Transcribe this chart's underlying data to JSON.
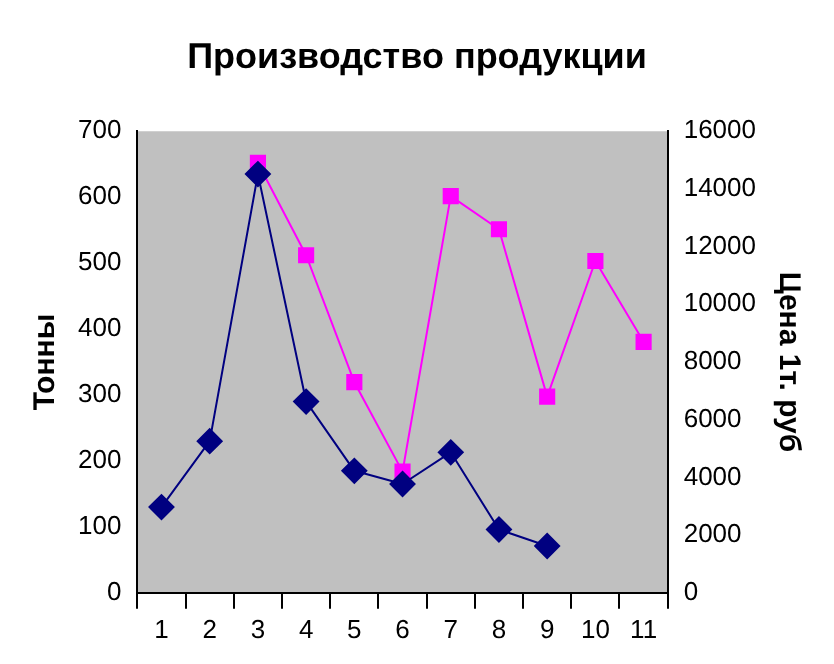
{
  "chart_data": {
    "type": "line",
    "title": "Производство продукции",
    "ylabel": "Тонны",
    "y2label": "Цена 1т. руб",
    "categories": [
      "1",
      "2",
      "3",
      "4",
      "5",
      "6",
      "7",
      "8",
      "9",
      "10",
      "11"
    ],
    "series": [
      {
        "color": "#000080",
        "marker": "diamond",
        "values": [
          130,
          230,
          635,
          290,
          185,
          165,
          213,
          96,
          71,
          null,
          null
        ]
      },
      {
        "color": "#ff00ff",
        "marker": "square",
        "axis": "y2",
        "values": [
          null,
          null,
          14900,
          11700,
          7300,
          4200,
          13750,
          12600,
          6800,
          11500,
          8700
        ]
      }
    ],
    "ylim": [
      0,
      700
    ],
    "yticks": [
      0,
      100,
      200,
      300,
      400,
      500,
      600,
      700
    ],
    "y2lim": [
      0,
      16000
    ],
    "y2ticks": [
      0,
      2000,
      4000,
      6000,
      8000,
      10000,
      12000,
      14000,
      16000
    ],
    "grid": false,
    "legend": false,
    "line_style": "solid"
  }
}
